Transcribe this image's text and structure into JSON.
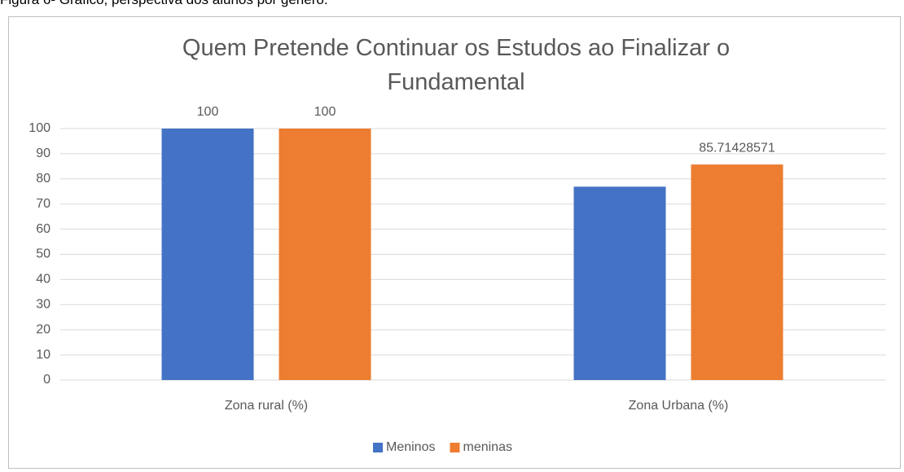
{
  "caption": "Figura 6- Gráfico, perspectiva dos alunos por gênero.",
  "chart_data": {
    "type": "bar",
    "title": "Quem Pretende Continuar os Estudos ao Finalizar o Fundamental",
    "categories": [
      "Zona rural (%)",
      "Zona Urbana (%)"
    ],
    "series": [
      {
        "name": "Meninos",
        "color": "#4472c4",
        "values": [
          100,
          76.9
        ],
        "value_labels": [
          "100",
          null
        ]
      },
      {
        "name": "meninas",
        "color": "#ed7d31",
        "values": [
          100,
          85.71428571
        ],
        "value_labels": [
          "100",
          "85.71428571"
        ]
      }
    ],
    "ylim": [
      0,
      100
    ],
    "yticks": [
      0,
      10,
      20,
      30,
      40,
      50,
      60,
      70,
      80,
      90,
      100
    ],
    "grid": true,
    "legend": "bottom"
  }
}
